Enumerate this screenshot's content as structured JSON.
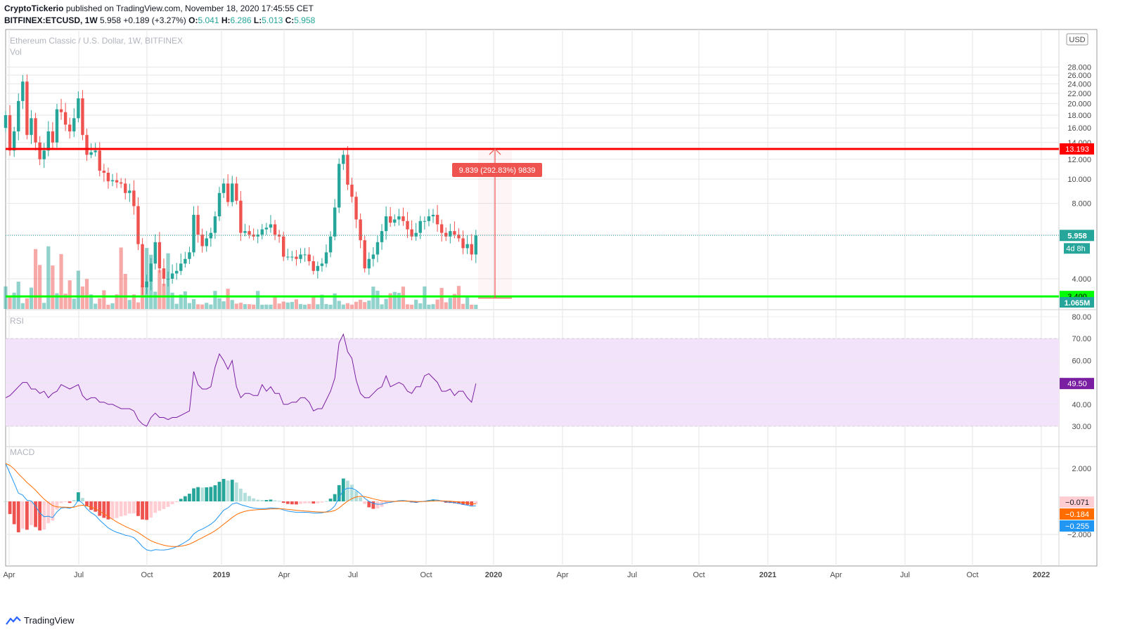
{
  "header": {
    "publisher": "CryptoTickerio",
    "published_text": "published on TradingView.com, November 18, 2020 17:45:55 CET",
    "symbol": "BITFINEX:ETCUSD, 1W",
    "last": "5.958",
    "change": "+0.189 (+3.27%)",
    "o_label": "O:",
    "o": "5.041",
    "h_label": "H:",
    "h": "6.286",
    "l_label": "L:",
    "l": "5.013",
    "c_label": "C:",
    "c": "5.958"
  },
  "brand": "TradingView",
  "chart_data": {
    "type": "candlestick",
    "title": "Ethereum Classic / U.S. Dollar, 1W, BITFINEX",
    "currency": "USD",
    "volume_label": "Vol",
    "y_ticks": [
      4,
      6,
      8,
      10,
      12,
      14,
      16,
      18,
      20,
      22,
      24,
      26,
      28
    ],
    "ylim": [
      2.0,
      28.5
    ],
    "x_ticks": [
      "Apr",
      "Jul",
      "Oct",
      "2019",
      "Apr",
      "Jul",
      "Oct",
      "2020",
      "Apr",
      "Jul",
      "Oct",
      "2021",
      "Apr",
      "Jul",
      "Oct",
      "2022"
    ],
    "closes": [
      18,
      13,
      15.5,
      20.5,
      24.5,
      15,
      17.5,
      14,
      12,
      13,
      15.5,
      14,
      19,
      18.5,
      16.5,
      15.5,
      17.5,
      21,
      15,
      12.5,
      12.8,
      13,
      10.8,
      10.6,
      9.8,
      9.9,
      9.7,
      9.6,
      8.8,
      9.0,
      7.8,
      5.5,
      3.7,
      3.9,
      4.6,
      5.6,
      4.4,
      4.0,
      4.0,
      4.2,
      4.3,
      4.6,
      4.8,
      5.1,
      7.2,
      6.0,
      5.4,
      5.8,
      6.1,
      7.1,
      8.8,
      9.6,
      8.1,
      9.6,
      8.2,
      6.1,
      6.2,
      6.0,
      5.9,
      6.0,
      6.3,
      6.4,
      6.6,
      6.0,
      5.9,
      4.9,
      4.9,
      4.9,
      4.8,
      5.0,
      5.0,
      4.7,
      4.3,
      4.5,
      4.6,
      5.1,
      5.9,
      7.7,
      11.5,
      12.5,
      9.5,
      8.5,
      6.9,
      5.7,
      4.4,
      4.8,
      5.0,
      5.6,
      6.2,
      7.1,
      6.7,
      6.9,
      7.1,
      6.8,
      6.3,
      5.9,
      6.1,
      6.8,
      6.8,
      7.1,
      7.2,
      6.6,
      6.1,
      5.9,
      6.2,
      6.0,
      5.8,
      5.3,
      5.5,
      5.0,
      5.958
    ],
    "hlines": [
      {
        "label": "13.193",
        "value": 13.193,
        "color": "#ff0000"
      },
      {
        "label": "3.400",
        "value": 3.4,
        "color": "#00ff00"
      }
    ],
    "last_price_label": "5.958",
    "countdown": "4d 8h",
    "volume_value_label": "1.065M",
    "measure_label": "9.839 (292.83%) 9839",
    "rsi": {
      "label": "RSI",
      "value_label": "49.50",
      "ticks": [
        30,
        40,
        50,
        60,
        70,
        80
      ],
      "band": [
        30,
        70
      ],
      "values": [
        43,
        44,
        46,
        48,
        50,
        50,
        47,
        47,
        45,
        46,
        43,
        45,
        46,
        49,
        48,
        47,
        48,
        49,
        44,
        42,
        43,
        43,
        41,
        41,
        40,
        40,
        39,
        38,
        38,
        38,
        37,
        33,
        31,
        30,
        34,
        36,
        34,
        34,
        33,
        34,
        34,
        35,
        36,
        37,
        55,
        49,
        47,
        47,
        48,
        57,
        63,
        60,
        56,
        60,
        48,
        43,
        45,
        45,
        44,
        44,
        49,
        46,
        48,
        45,
        45,
        40,
        40,
        41,
        41,
        43,
        43,
        41,
        37,
        38,
        38,
        42,
        46,
        52,
        68,
        72,
        64,
        61,
        51,
        45,
        43,
        43,
        45,
        47,
        48,
        53,
        48,
        49,
        50,
        49,
        46,
        45,
        48,
        48,
        53,
        54,
        52,
        50,
        46,
        46,
        47,
        44,
        46,
        46,
        43,
        41,
        49.5
      ]
    },
    "macd": {
      "label": "MACD",
      "ticks": [
        -2.0,
        2.0
      ],
      "ylim": [
        -4.0,
        3.3
      ],
      "labels": [
        {
          "text": "-0.071",
          "value": -0.071,
          "color": "#ffcdd2"
        },
        {
          "text": "-0.184",
          "value": -0.184,
          "color": "#ff6d00"
        },
        {
          "text": "-0.255",
          "value": -0.255,
          "color": "#2196f3"
        }
      ]
    }
  },
  "colors": {
    "up": "#26a69a",
    "down": "#ef5350",
    "grid": "#e6e6e6",
    "rsi_line": "#7b1fa2",
    "rsi_band": "#f2e3fa",
    "macd_line": "#2196f3",
    "signal_line": "#ff6d00"
  }
}
